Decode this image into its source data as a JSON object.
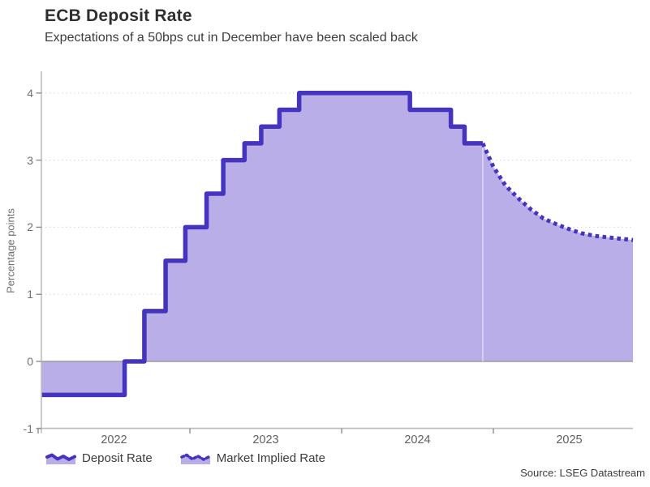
{
  "header": {
    "title": "ECB Deposit Rate",
    "subtitle": "Expectations of a 50bps cut in December have been scaled back"
  },
  "footer": {
    "source": "Source: LSEG Datastream"
  },
  "chart_data": {
    "type": "area",
    "title": "ECB Deposit Rate",
    "subtitle": "Expectations of a 50bps cut in December have been scaled back",
    "xlabel": "",
    "ylabel": "Percentage points",
    "ylim": [
      -1,
      4.33
    ],
    "yticks": [
      4,
      3,
      2,
      1,
      0,
      -1
    ],
    "year_ticks": [
      2022,
      2023,
      2024,
      2025
    ],
    "xlim": [
      2022.02,
      2025.92
    ],
    "grid": "horizontal-dotted",
    "legend_position": "bottom-left",
    "baseline": 0,
    "colors": {
      "line": "#4434BF",
      "fill": "#BAAEE9",
      "grid": "#DBDBDB",
      "axis": "#BDBDBD",
      "tick": "#8E8E8E",
      "zero_line": "#9C9C9C"
    },
    "series": [
      {
        "name": "Deposit Rate",
        "style": "solid-step",
        "points": [
          [
            2022.02,
            -0.5
          ],
          [
            2022.57,
            0.0
          ],
          [
            2022.7,
            0.75
          ],
          [
            2022.84,
            1.5
          ],
          [
            2022.97,
            2.0
          ],
          [
            2023.11,
            2.5
          ],
          [
            2023.22,
            3.0
          ],
          [
            2023.36,
            3.25
          ],
          [
            2023.47,
            3.5
          ],
          [
            2023.59,
            3.75
          ],
          [
            2023.72,
            4.0
          ],
          [
            2024.45,
            3.75
          ],
          [
            2024.72,
            3.5
          ],
          [
            2024.81,
            3.25
          ],
          [
            2024.93,
            3.25
          ]
        ]
      },
      {
        "name": "Market Implied Rate",
        "style": "dotted-line",
        "points": [
          [
            2024.93,
            3.25
          ],
          [
            2025.0,
            2.9
          ],
          [
            2025.08,
            2.62
          ],
          [
            2025.17,
            2.42
          ],
          [
            2025.25,
            2.26
          ],
          [
            2025.33,
            2.13
          ],
          [
            2025.42,
            2.04
          ],
          [
            2025.5,
            1.97
          ],
          [
            2025.58,
            1.91
          ],
          [
            2025.67,
            1.87
          ],
          [
            2025.75,
            1.85
          ],
          [
            2025.83,
            1.83
          ],
          [
            2025.92,
            1.81
          ]
        ]
      }
    ]
  }
}
